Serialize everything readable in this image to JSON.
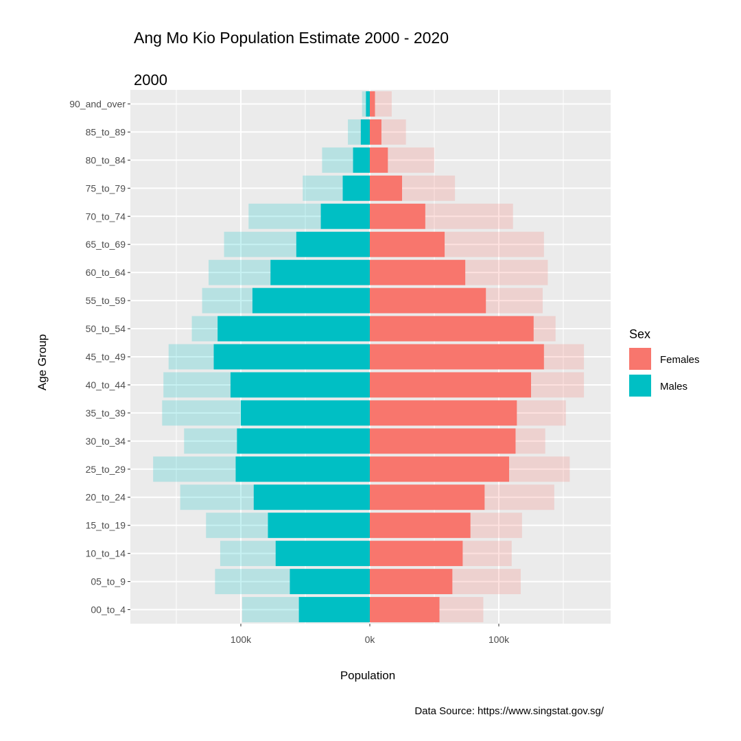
{
  "chart_data": {
    "type": "bar",
    "orientation": "horizontal-population-pyramid",
    "title": "Ang Mo Kio Population Estimate 2000 - 2020",
    "subtitle": "2000",
    "xlabel": "Population",
    "ylabel": "Age Group",
    "caption": "Data Source: https://www.singstat.gov.sg/",
    "x_ticks": [
      {
        "value": -100000,
        "label": "100k"
      },
      {
        "value": 0,
        "label": "0k"
      },
      {
        "value": 100000,
        "label": "100k"
      }
    ],
    "xlim": [
      -185000,
      185000
    ],
    "grid": true,
    "legend": {
      "title": "Sex",
      "position": "right"
    },
    "categories": [
      "00_to_4",
      "05_to_9",
      "10_to_14",
      "15_to_19",
      "20_to_24",
      "25_to_29",
      "30_to_34",
      "35_to_39",
      "40_to_44",
      "45_to_49",
      "50_to_54",
      "55_to_59",
      "60_to_64",
      "65_to_69",
      "70_to_74",
      "75_to_79",
      "80_to_84",
      "85_to_89",
      "90_and_over"
    ],
    "series": [
      {
        "name": "Females",
        "color": "#F8766D",
        "layer": "year 2000 (solid)",
        "values": [
          54000,
          64000,
          72000,
          78000,
          89000,
          108000,
          113000,
          114000,
          125000,
          135000,
          127000,
          90000,
          74000,
          58000,
          43000,
          25000,
          14000,
          9000,
          4000
        ]
      },
      {
        "name": "Males",
        "color": "#00BFC4",
        "layer": "year 2000 (solid)",
        "values": [
          -55000,
          -62000,
          -73000,
          -79000,
          -90000,
          -104000,
          -103000,
          -100000,
          -108000,
          -121000,
          -118000,
          -91000,
          -77000,
          -57000,
          -38000,
          -21000,
          -13000,
          -7000,
          -3000
        ]
      },
      {
        "name": "Females",
        "color": "#F8766D",
        "layer": "overlay (faded)",
        "values": [
          88000,
          117000,
          110000,
          118000,
          143000,
          155000,
          136000,
          152000,
          166000,
          166000,
          144000,
          134000,
          138000,
          135000,
          111000,
          66000,
          50000,
          28000,
          17000
        ]
      },
      {
        "name": "Males",
        "color": "#00BFC4",
        "layer": "overlay (faded)",
        "values": [
          -99000,
          -120000,
          -116000,
          -127000,
          -147000,
          -168000,
          -144000,
          -161000,
          -160000,
          -156000,
          -138000,
          -130000,
          -125000,
          -113000,
          -94000,
          -52000,
          -37000,
          -17000,
          -6000
        ]
      }
    ]
  }
}
